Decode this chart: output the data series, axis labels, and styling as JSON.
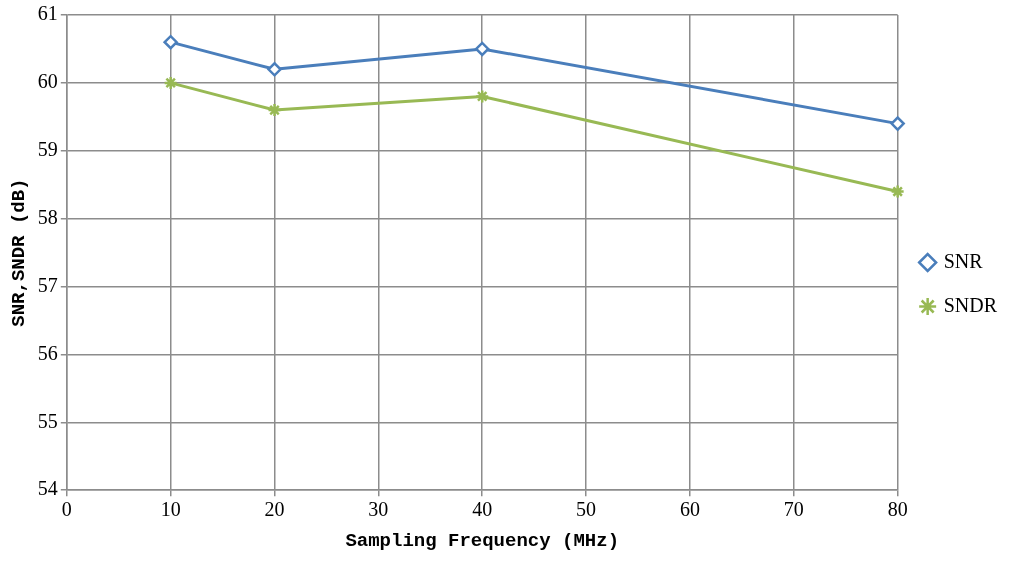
{
  "chart_data": {
    "type": "line",
    "xlabel": "Sampling Frequency (MHz)",
    "ylabel": "SNR,SNDR (dB)",
    "x": [
      10,
      20,
      40,
      80
    ],
    "series": [
      {
        "name": "SNR",
        "color": "#4a7ebb",
        "marker": "diamond",
        "values": [
          60.6,
          60.2,
          60.5,
          59.4
        ]
      },
      {
        "name": "SNDR",
        "color": "#98b954",
        "marker": "cross",
        "values": [
          60.0,
          59.6,
          59.8,
          58.4
        ]
      }
    ],
    "xlim": [
      0,
      80
    ],
    "xticks": [
      0,
      10,
      20,
      30,
      40,
      50,
      60,
      70,
      80
    ],
    "ylim": [
      54,
      61
    ],
    "yticks": [
      54,
      55,
      56,
      57,
      58,
      59,
      60,
      61
    ],
    "grid": true,
    "legend": "right",
    "line_style": "solid"
  }
}
